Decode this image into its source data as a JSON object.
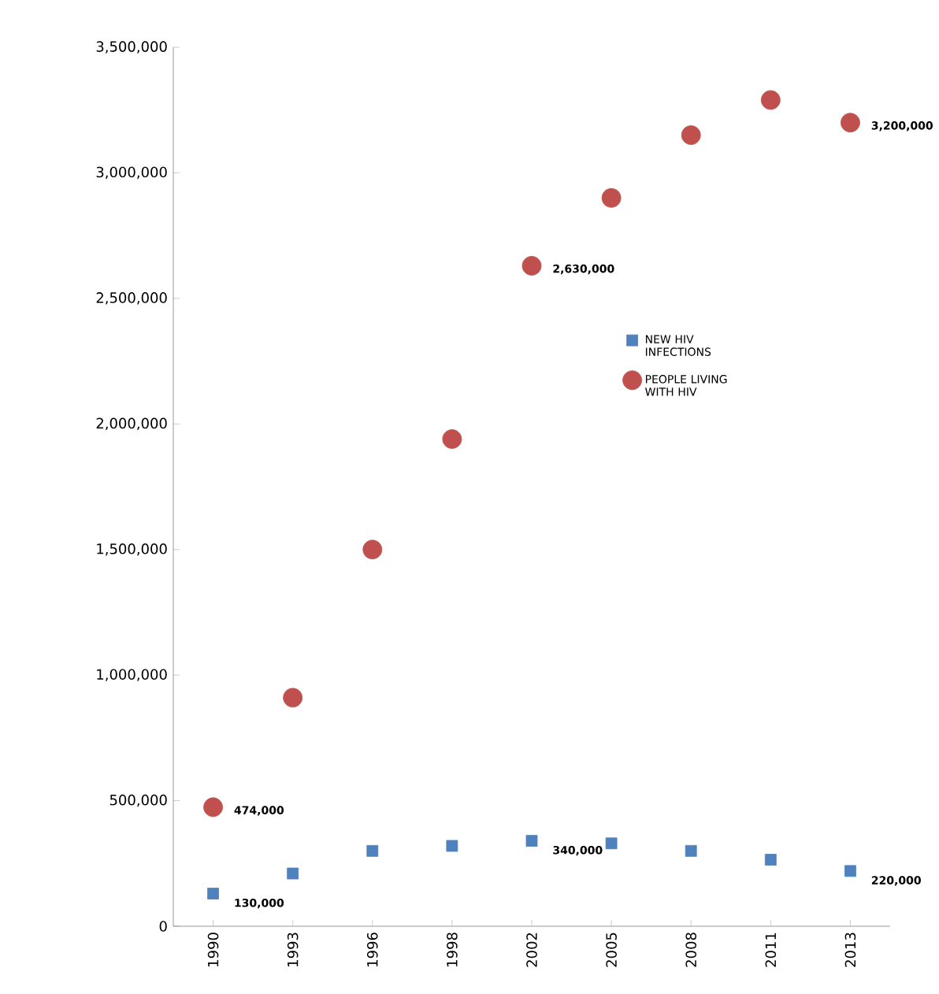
{
  "chart_data": {
    "type": "scatter",
    "categories": [
      "1990",
      "1993",
      "1996",
      "1998",
      "2002",
      "2005",
      "2008",
      "2011",
      "2013"
    ],
    "series": [
      {
        "name": "NEW HIV INFECTIONS",
        "color": "#4f81bd",
        "marker": "square",
        "values": [
          130000,
          210000,
          300000,
          320000,
          340000,
          330000,
          300000,
          265000,
          220000
        ],
        "value_labels": [
          "130,000",
          null,
          null,
          null,
          "340,000",
          null,
          null,
          null,
          "220,000"
        ]
      },
      {
        "name": "PEOPLE LIVING WITH HIV",
        "color": "#c0504d",
        "marker": "circle",
        "values": [
          474000,
          910000,
          1500000,
          1940000,
          2630000,
          2900000,
          3150000,
          3290000,
          3200000
        ],
        "value_labels": [
          "474,000",
          null,
          null,
          null,
          "2,630,000",
          null,
          null,
          null,
          "3,200,000"
        ]
      }
    ],
    "ylim": [
      0,
      3500000
    ],
    "yticks": [
      {
        "value": 0,
        "label": "0"
      },
      {
        "value": 500000,
        "label": "500,000"
      },
      {
        "value": 1000000,
        "label": "1,000,000"
      },
      {
        "value": 1500000,
        "label": "1,500,000"
      },
      {
        "value": 2000000,
        "label": "2,000,000"
      },
      {
        "value": 2500000,
        "label": "2,500,000"
      },
      {
        "value": 3000000,
        "label": "3,000,000"
      },
      {
        "value": 3500000,
        "label": "3,500,000"
      }
    ],
    "legend": "right"
  }
}
